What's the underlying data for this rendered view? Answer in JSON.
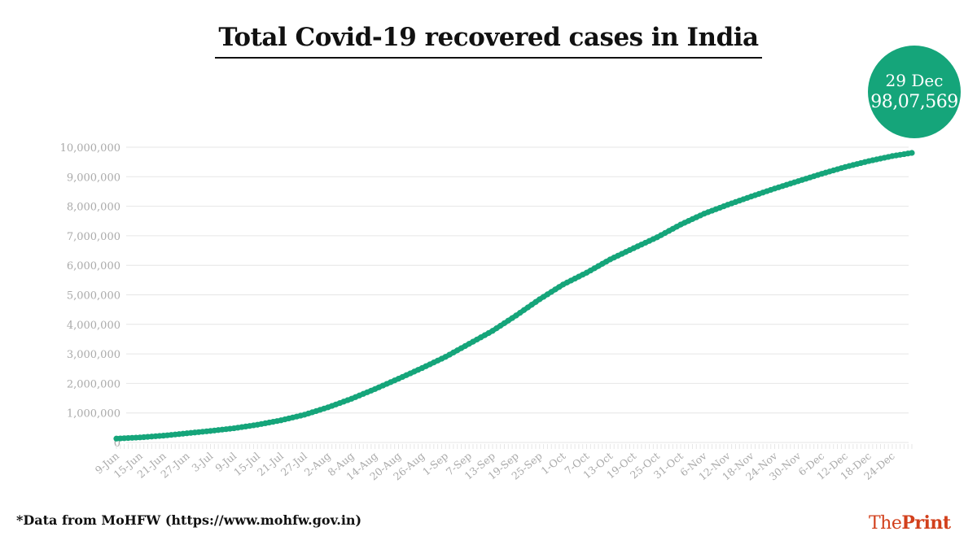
{
  "chart_data": {
    "type": "line",
    "title": "Total Covid-19 recovered cases in India",
    "xlabel": "",
    "ylabel": "",
    "x_start": "9-Jun",
    "x_end": "29-Dec",
    "x_ticks": [
      "9-Jun",
      "15-Jun",
      "21-Jun",
      "27-Jun",
      "3-Jul",
      "9-Jul",
      "15-Jul",
      "21-Jul",
      "27-Jul",
      "2-Aug",
      "8-Aug",
      "14-Aug",
      "20-Aug",
      "26-Aug",
      "1-Sep",
      "7-Sep",
      "13-Sep",
      "19-Sep",
      "25-Sep",
      "1-Oct",
      "7-Oct",
      "13-Oct",
      "19-Oct",
      "25-Oct",
      "31-Oct",
      "6-Nov",
      "12-Nov",
      "18-Nov",
      "24-Nov",
      "30-Nov",
      "6-Dec",
      "12-Dec",
      "18-Dec",
      "24-Dec"
    ],
    "x": [
      "9-Jun",
      "15-Jun",
      "21-Jun",
      "27-Jun",
      "3-Jul",
      "9-Jul",
      "15-Jul",
      "21-Jul",
      "27-Jul",
      "2-Aug",
      "8-Aug",
      "14-Aug",
      "20-Aug",
      "26-Aug",
      "1-Sep",
      "7-Sep",
      "13-Sep",
      "19-Sep",
      "25-Sep",
      "1-Oct",
      "7-Oct",
      "13-Oct",
      "19-Oct",
      "25-Oct",
      "31-Oct",
      "6-Nov",
      "12-Nov",
      "18-Nov",
      "24-Nov",
      "30-Nov",
      "6-Dec",
      "12-Dec",
      "18-Dec",
      "24-Dec",
      "29-Dec"
    ],
    "series": [
      {
        "values": [
          130000,
          170000,
          230000,
          310000,
          390000,
          480000,
          600000,
          750000,
          940000,
          1190000,
          1480000,
          1810000,
          2160000,
          2520000,
          2900000,
          3340000,
          3780000,
          4300000,
          4850000,
          5350000,
          5750000,
          6200000,
          6580000,
          6950000,
          7380000,
          7750000,
          8050000,
          8330000,
          8600000,
          8850000,
          9100000,
          9330000,
          9530000,
          9700000,
          9807569
        ]
      }
    ],
    "y_ticks": [
      "0",
      "1,000,000",
      "2,000,000",
      "3,000,000",
      "4,000,000",
      "5,000,000",
      "6,000,000",
      "7,000,000",
      "8,000,000",
      "9,000,000",
      "10,000,000"
    ],
    "ylim": [
      0,
      10000000
    ],
    "grid": true,
    "color": "#15a57a",
    "annotation": {
      "date": "29 Dec",
      "value": "98,07,569"
    }
  },
  "footer": {
    "source": "*Data from MoHFW (https://www.mohfw.gov.in)",
    "logo_the": "The",
    "logo_print": "Print"
  }
}
